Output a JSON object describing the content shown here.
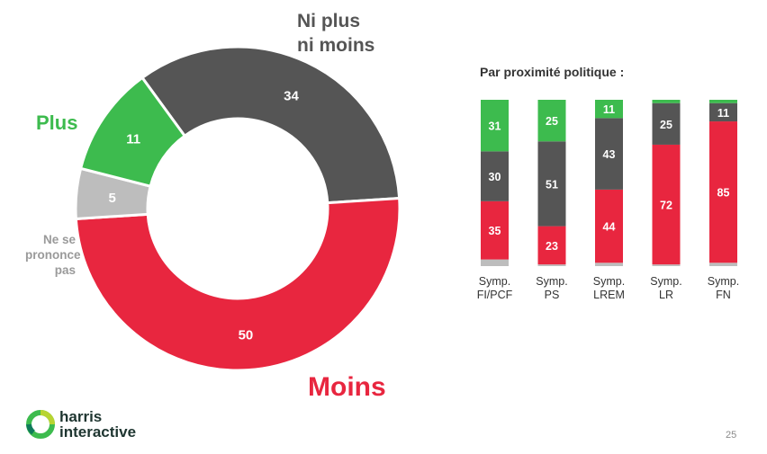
{
  "colors": {
    "plus": "#3dbb4e",
    "ni": "#555555",
    "moins": "#e8263f",
    "nsp": "#bdbdbd"
  },
  "labels": {
    "plus": "Plus",
    "ni_line1": "Ni plus",
    "ni_line2": "ni moins",
    "nsp_line1": "Ne se",
    "nsp_line2": "prononce",
    "nsp_line3": "pas",
    "moins": "Moins"
  },
  "panel_title": "Par proximité politique :",
  "logo": {
    "line1": "harris",
    "line2": "interactive"
  },
  "page_number": "25",
  "chart_data": [
    {
      "type": "pie",
      "donut": true,
      "categories": [
        "Ni plus ni moins",
        "Moins",
        "Ne se prononce pas",
        "Plus"
      ],
      "values": [
        34,
        50,
        5,
        11
      ]
    },
    {
      "type": "bar",
      "stacked": true,
      "title": "Par proximité politique :",
      "categories": [
        "Symp. FI/PCF",
        "Symp. PS",
        "Symp. LREM",
        "Symp. LR",
        "Symp. FN"
      ],
      "series": [
        {
          "name": "Moins",
          "values": [
            35,
            23,
            44,
            72,
            85
          ]
        },
        {
          "name": "Ni plus ni moins",
          "values": [
            30,
            51,
            43,
            25,
            11
          ]
        },
        {
          "name": "Plus",
          "values": [
            31,
            25,
            11,
            2,
            2
          ]
        },
        {
          "name": "Ne se prononce pas",
          "values": [
            4,
            1,
            2,
            1,
            2
          ]
        }
      ],
      "ylim": [
        0,
        100
      ]
    }
  ]
}
